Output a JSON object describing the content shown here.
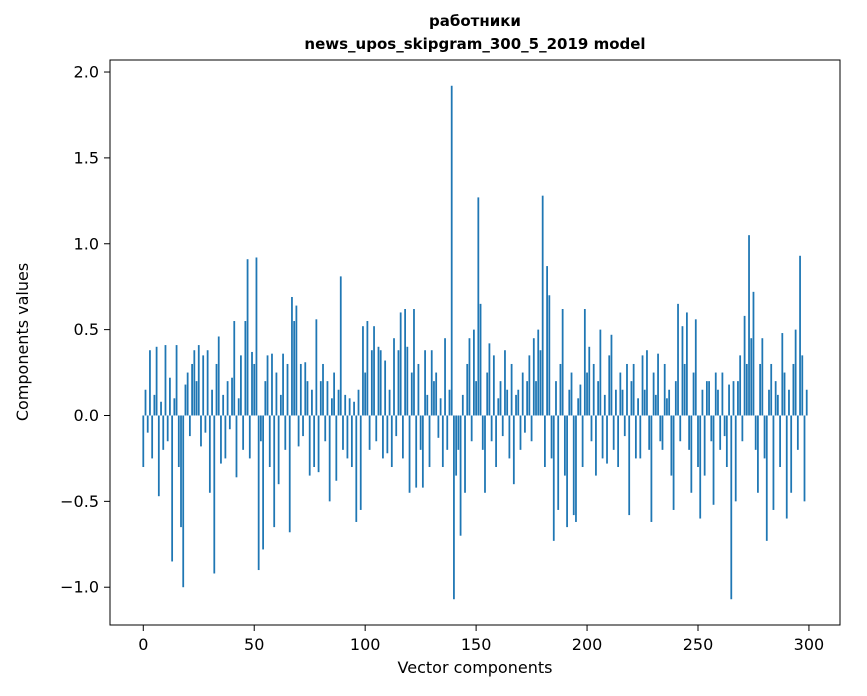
{
  "figure": {
    "title_line1": "работники",
    "title_line2": "news_upos_skipgram_300_5_2019 model",
    "xlabel": "Vector components",
    "ylabel": "Components values"
  },
  "chart_data": {
    "type": "bar",
    "title": "работники",
    "subtitle": "news_upos_skipgram_300_5_2019 model",
    "xlabel": "Vector components",
    "ylabel": "Components values",
    "bar_color": "#1f77b4",
    "xlim": [
      -15,
      314
    ],
    "ylim": [
      -1.22,
      2.07
    ],
    "xticks": [
      0,
      50,
      100,
      150,
      200,
      250,
      300
    ],
    "xtick_labels": [
      "0",
      "50",
      "100",
      "150",
      "200",
      "250",
      "300"
    ],
    "yticks": [
      2.0,
      1.5,
      1.0,
      0.5,
      0.0,
      -0.5,
      -1.0
    ],
    "ytick_labels": [
      "2.0",
      "1.5",
      "1.0",
      "0.5",
      "0.0",
      "−0.5",
      "−1.0"
    ],
    "grid": false,
    "legend": null,
    "x_start": 0,
    "values": [
      -0.3,
      0.15,
      -0.1,
      0.38,
      -0.25,
      0.12,
      0.4,
      -0.47,
      0.08,
      -0.2,
      0.41,
      -0.15,
      0.22,
      -0.85,
      0.1,
      0.41,
      -0.3,
      -0.65,
      -1.0,
      0.18,
      0.25,
      -0.12,
      0.3,
      0.38,
      0.2,
      0.41,
      -0.18,
      0.35,
      -0.1,
      0.38,
      -0.45,
      0.15,
      -0.92,
      0.3,
      0.46,
      -0.28,
      0.12,
      -0.25,
      0.2,
      -0.08,
      0.22,
      0.55,
      -0.36,
      0.1,
      0.35,
      -0.2,
      0.55,
      0.91,
      -0.25,
      0.37,
      0.3,
      0.92,
      -0.9,
      -0.15,
      -0.78,
      0.2,
      0.35,
      -0.3,
      0.36,
      -0.65,
      0.25,
      -0.4,
      0.12,
      0.36,
      -0.2,
      0.3,
      -0.68,
      0.69,
      0.55,
      0.64,
      -0.18,
      0.3,
      -0.12,
      0.31,
      0.2,
      -0.35,
      0.15,
      -0.3,
      0.56,
      -0.33,
      0.2,
      0.3,
      -0.15,
      0.2,
      -0.5,
      0.1,
      0.25,
      -0.38,
      0.15,
      0.81,
      -0.2,
      0.12,
      -0.25,
      0.1,
      -0.3,
      0.08,
      -0.62,
      0.15,
      -0.55,
      0.52,
      0.25,
      0.55,
      -0.2,
      0.38,
      0.52,
      -0.15,
      0.4,
      0.38,
      -0.25,
      0.32,
      -0.22,
      0.15,
      -0.3,
      0.45,
      -0.12,
      0.38,
      0.6,
      -0.25,
      0.62,
      0.4,
      -0.45,
      0.25,
      0.62,
      -0.42,
      0.3,
      -0.2,
      -0.42,
      0.38,
      0.12,
      -0.3,
      0.38,
      0.2,
      0.25,
      -0.13,
      0.1,
      -0.3,
      0.45,
      -0.2,
      0.15,
      1.92,
      -1.07,
      -0.35,
      -0.2,
      -0.7,
      0.12,
      -0.45,
      0.3,
      0.45,
      -0.15,
      0.5,
      0.2,
      1.27,
      0.65,
      -0.2,
      -0.45,
      0.25,
      0.42,
      -0.15,
      0.35,
      -0.3,
      0.1,
      0.2,
      -0.12,
      0.38,
      0.15,
      -0.25,
      0.3,
      -0.4,
      0.12,
      0.15,
      -0.2,
      0.25,
      -0.1,
      0.2,
      0.35,
      -0.15,
      0.45,
      0.2,
      0.5,
      0.38,
      1.28,
      -0.3,
      0.87,
      0.7,
      -0.25,
      -0.73,
      0.2,
      -0.55,
      0.3,
      0.62,
      -0.35,
      -0.65,
      0.15,
      0.25,
      -0.58,
      -0.62,
      0.1,
      0.18,
      -0.3,
      0.62,
      0.25,
      0.4,
      -0.15,
      0.3,
      -0.35,
      0.2,
      0.5,
      -0.25,
      0.12,
      -0.28,
      0.35,
      0.47,
      -0.2,
      0.15,
      -0.3,
      0.25,
      0.15,
      -0.12,
      0.3,
      -0.58,
      0.2,
      0.3,
      -0.25,
      0.1,
      -0.25,
      0.35,
      0.15,
      0.38,
      -0.2,
      -0.62,
      0.25,
      0.12,
      0.36,
      -0.15,
      -0.2,
      0.3,
      0.1,
      0.15,
      -0.35,
      -0.55,
      0.2,
      0.65,
      -0.15,
      0.52,
      0.3,
      0.6,
      -0.2,
      -0.45,
      0.25,
      0.56,
      -0.3,
      -0.6,
      0.15,
      -0.35,
      0.2,
      0.2,
      -0.15,
      -0.52,
      0.25,
      0.15,
      -0.2,
      0.25,
      -0.12,
      -0.3,
      0.18,
      -1.07,
      0.2,
      -0.5,
      0.2,
      0.35,
      -0.15,
      0.58,
      0.3,
      1.05,
      0.45,
      0.72,
      -0.2,
      -0.45,
      0.3,
      0.45,
      -0.25,
      -0.73,
      0.15,
      0.3,
      -0.55,
      0.2,
      0.12,
      -0.3,
      0.48,
      0.25,
      -0.6,
      0.15,
      -0.45,
      0.3,
      0.5,
      -0.2,
      0.93,
      0.35,
      -0.5,
      0.15
    ]
  }
}
